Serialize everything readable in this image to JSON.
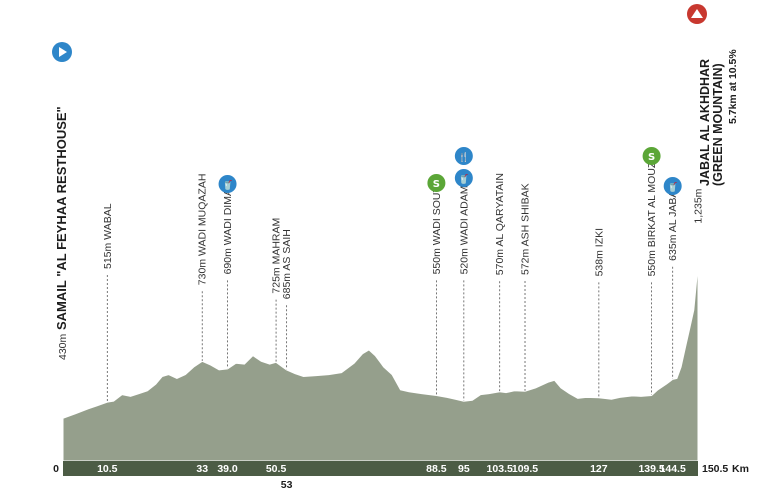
{
  "chart_data": {
    "type": "area",
    "unit_label": "Km",
    "xlim": [
      0,
      150.5
    ],
    "ylim": [
      0,
      1300
    ],
    "grid": false,
    "profile": [
      [
        0,
        430
      ],
      [
        3,
        455
      ],
      [
        6,
        480
      ],
      [
        8,
        495
      ],
      [
        10.5,
        515
      ],
      [
        12,
        520
      ],
      [
        14,
        555
      ],
      [
        16,
        545
      ],
      [
        18,
        560
      ],
      [
        20,
        575
      ],
      [
        22,
        610
      ],
      [
        23.5,
        650
      ],
      [
        25,
        660
      ],
      [
        27,
        640
      ],
      [
        29,
        660
      ],
      [
        31,
        700
      ],
      [
        33,
        730
      ],
      [
        35,
        710
      ],
      [
        37,
        685
      ],
      [
        39,
        690
      ],
      [
        41,
        720
      ],
      [
        43,
        715
      ],
      [
        45,
        760
      ],
      [
        47,
        730
      ],
      [
        49,
        715
      ],
      [
        50.5,
        725
      ],
      [
        52,
        700
      ],
      [
        53,
        685
      ],
      [
        55,
        665
      ],
      [
        57,
        650
      ],
      [
        60,
        655
      ],
      [
        63,
        660
      ],
      [
        66,
        670
      ],
      [
        69,
        720
      ],
      [
        71,
        770
      ],
      [
        72.5,
        790
      ],
      [
        74,
        760
      ],
      [
        76,
        700
      ],
      [
        78,
        660
      ],
      [
        80,
        580
      ],
      [
        82,
        570
      ],
      [
        85,
        560
      ],
      [
        88.5,
        550
      ],
      [
        91,
        540
      ],
      [
        93,
        530
      ],
      [
        95,
        520
      ],
      [
        97,
        525
      ],
      [
        99,
        555
      ],
      [
        101,
        560
      ],
      [
        103.5,
        570
      ],
      [
        105,
        565
      ],
      [
        107,
        575
      ],
      [
        109.5,
        572
      ],
      [
        112,
        590
      ],
      [
        115,
        620
      ],
      [
        116.5,
        630
      ],
      [
        118,
        590
      ],
      [
        120,
        560
      ],
      [
        122,
        535
      ],
      [
        124,
        540
      ],
      [
        127,
        538
      ],
      [
        130,
        530
      ],
      [
        132,
        540
      ],
      [
        135,
        548
      ],
      [
        137,
        545
      ],
      [
        139.5,
        550
      ],
      [
        141,
        580
      ],
      [
        143,
        610
      ],
      [
        144.5,
        635
      ],
      [
        145.5,
        640
      ],
      [
        146.5,
        700
      ],
      [
        147.5,
        800
      ],
      [
        148.5,
        900
      ],
      [
        149.5,
        1000
      ],
      [
        150.5,
        1235
      ]
    ],
    "waypoints": [
      {
        "km": "10.5",
        "x": 10.5,
        "alt": 515,
        "label": "515m WABAL"
      },
      {
        "km": "33",
        "x": 33,
        "alt": 730,
        "label": "730m WADI MUQAZAH"
      },
      {
        "km": "39.0",
        "x": 39,
        "alt": 690,
        "label": "690m WADI DIMA"
      },
      {
        "km": "50.5",
        "x": 50.5,
        "alt": 725,
        "label": "725m MAHRAM"
      },
      {
        "km": "53",
        "x": 53,
        "alt": 685,
        "label": "685m AS SAIH"
      },
      {
        "km": "88.5",
        "x": 88.5,
        "alt": 550,
        "label": "550m WADI SOUT"
      },
      {
        "km": "95",
        "x": 95,
        "alt": 520,
        "label": "520m WADI ADAM"
      },
      {
        "km": "103.5",
        "x": 103.5,
        "alt": 570,
        "label": "570m AL QARYATAIN"
      },
      {
        "km": "109.5",
        "x": 109.5,
        "alt": 572,
        "label": "572m ASH SHIBAK"
      },
      {
        "km": "127",
        "x": 127,
        "alt": 538,
        "label": "538m IZKI"
      },
      {
        "km": "139.5",
        "x": 139.5,
        "alt": 550,
        "label": "550m BIRKAT AL MOUZ"
      },
      {
        "km": "144.5",
        "x": 144.5,
        "alt": 635,
        "label": "635m AL JABAL"
      },
      {
        "km": "150.5",
        "x": 150.5,
        "alt": 1235,
        "label": "1,235m"
      }
    ],
    "start": {
      "km": "0",
      "alt_label": "430m",
      "name": "SAMAIL \"AL FEYHAA RESTHOUSE\""
    },
    "finish": {
      "name_line1": "JABAL AL AKHDHAR",
      "name_line2": "(GREEN MOUNTAIN)",
      "climb": "5.7km at 10.5%"
    },
    "icons": [
      {
        "type": "feed-zone",
        "x": 39,
        "glyph": "🥤"
      },
      {
        "type": "sprint",
        "x": 88.5,
        "glyph": "S"
      },
      {
        "type": "food",
        "x": 95,
        "glyph": "🍴"
      },
      {
        "type": "feed-zone",
        "x": 95,
        "glyph": "🥤"
      },
      {
        "type": "sprint",
        "x": 139.5,
        "glyph": "S"
      },
      {
        "type": "feed-zone",
        "x": 144.5,
        "glyph": "🥤"
      }
    ],
    "colors": {
      "profile_fill": "#959f8c",
      "profile_stroke": "#ffffff",
      "axis_bar": "#4c5c45",
      "start_icon": "#2e86c9",
      "finish_icon": "#c8382f",
      "sprint_icon": "#5ba637",
      "feed_icon": "#2e86c9",
      "dashed_line": "#555555"
    }
  }
}
